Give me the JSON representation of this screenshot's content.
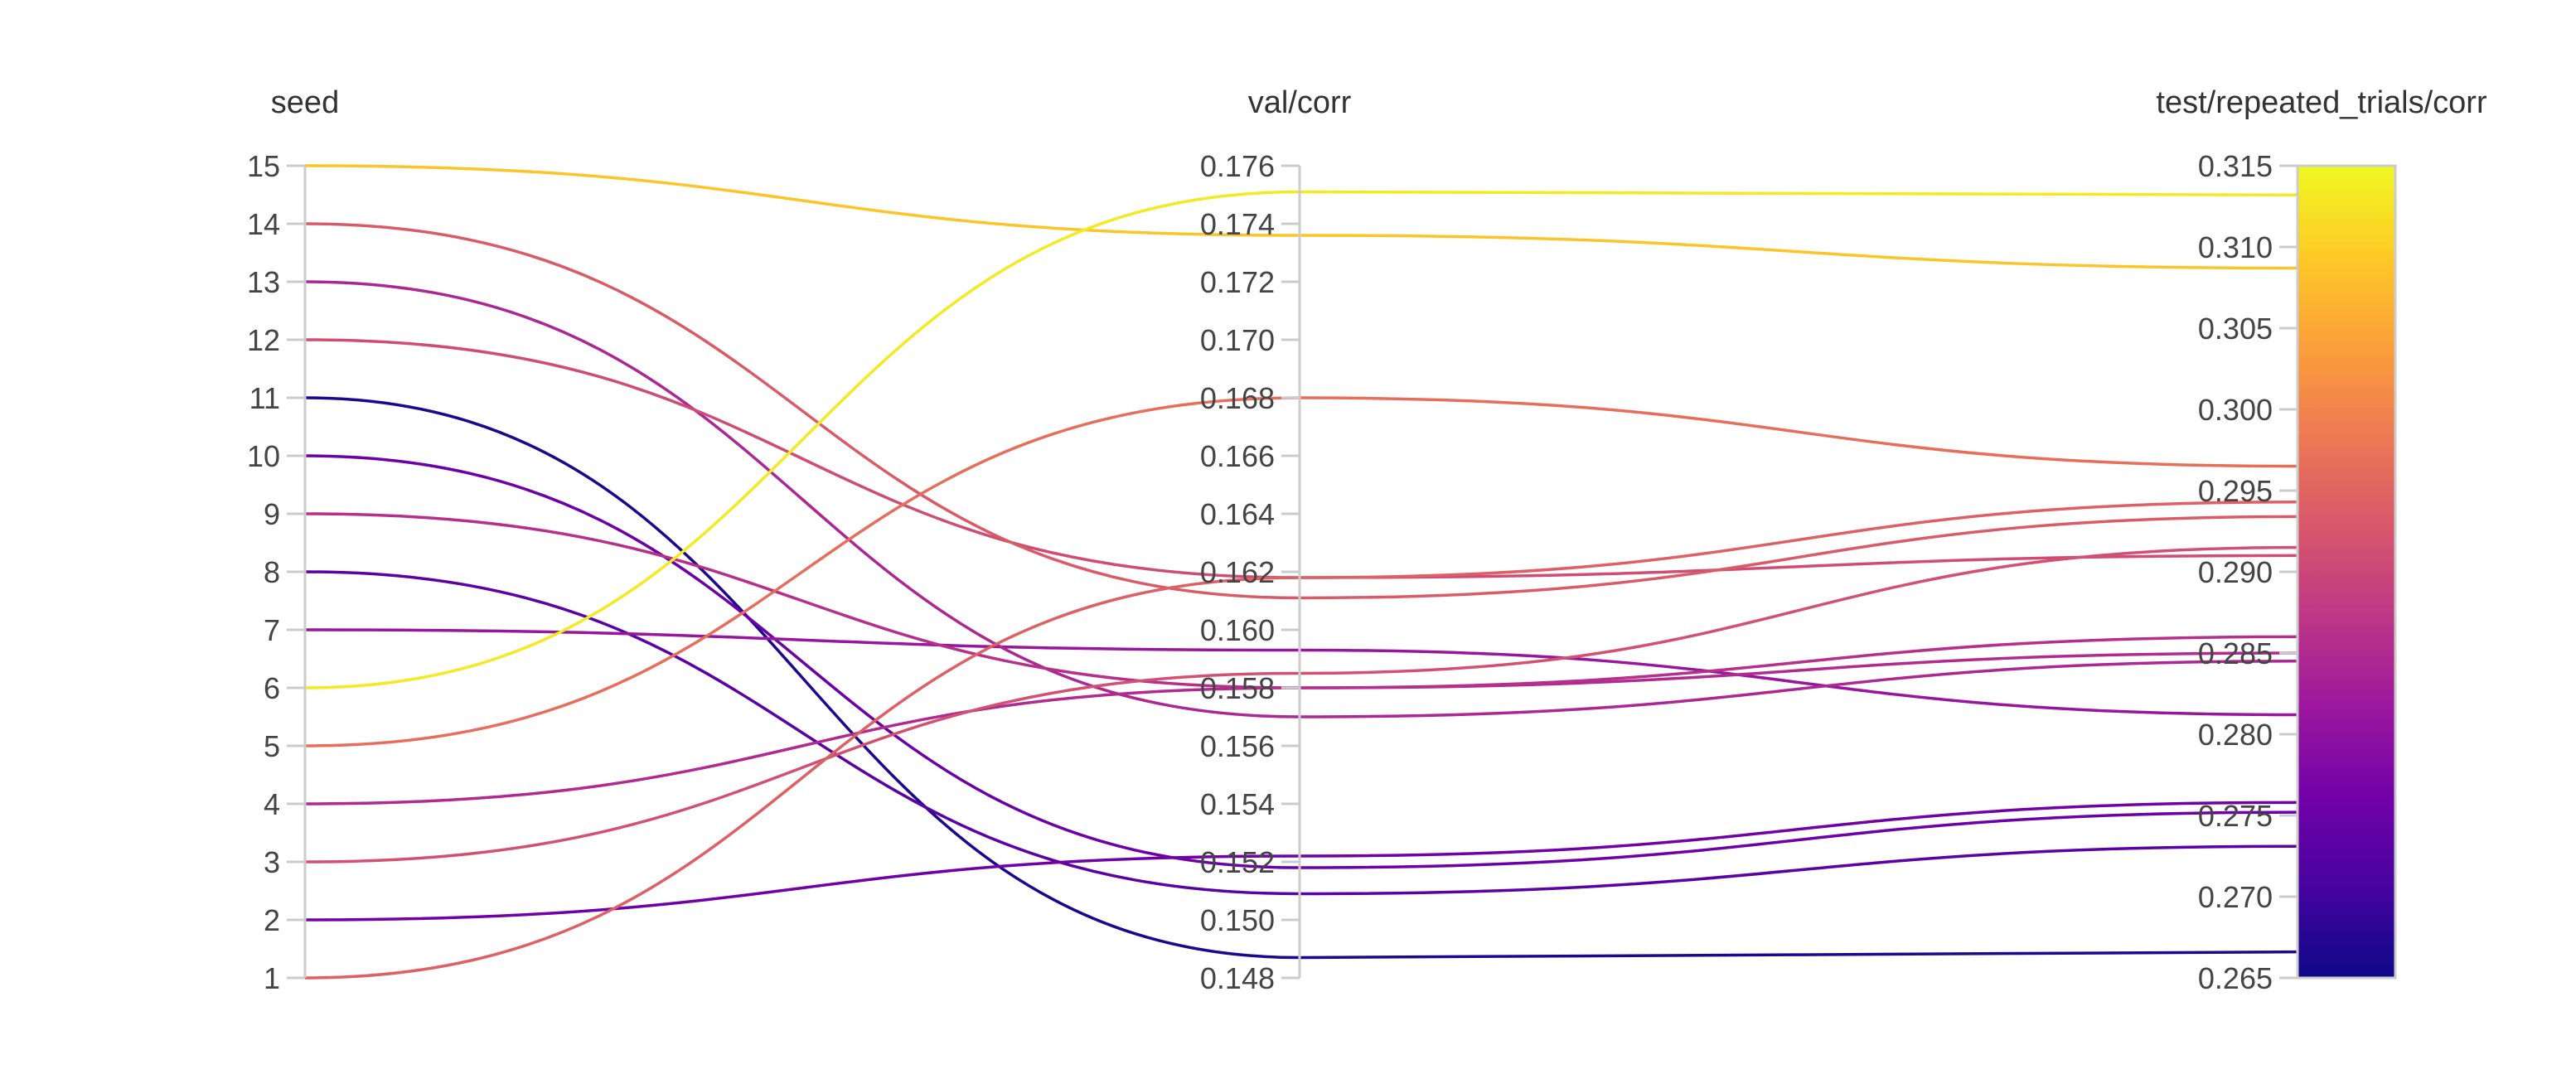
{
  "chart_data": {
    "type": "parallel_coordinates",
    "axes": [
      {
        "key": "seed",
        "label": "seed",
        "range": [
          1,
          15
        ],
        "ticks": [
          "1",
          "2",
          "3",
          "4",
          "5",
          "6",
          "7",
          "8",
          "9",
          "10",
          "11",
          "12",
          "13",
          "14",
          "15"
        ]
      },
      {
        "key": "val",
        "label": "val/corr",
        "range": [
          0.148,
          0.176
        ],
        "ticks": [
          "0.148",
          "0.150",
          "0.152",
          "0.154",
          "0.156",
          "0.158",
          "0.160",
          "0.162",
          "0.164",
          "0.166",
          "0.168",
          "0.170",
          "0.172",
          "0.174",
          "0.176"
        ]
      },
      {
        "key": "test",
        "label": "test/repeated_trials/corr",
        "range": [
          0.265,
          0.315
        ],
        "ticks": [
          "0.265",
          "0.270",
          "0.275",
          "0.280",
          "0.285",
          "0.290",
          "0.295",
          "0.300",
          "0.305",
          "0.310",
          "0.315"
        ]
      }
    ],
    "colorscale": {
      "name": "plasma",
      "axis": "test",
      "stops": [
        "#0d0887",
        "#46039f",
        "#7201a8",
        "#9c179e",
        "#bd3786",
        "#d8576b",
        "#ed7953",
        "#fb9f3a",
        "#fdca26",
        "#f0f921"
      ]
    },
    "lines": [
      {
        "seed": 15,
        "val": 0.1736,
        "test": 0.3087
      },
      {
        "seed": 6,
        "val": 0.1751,
        "test": 0.3132
      },
      {
        "seed": 5,
        "val": 0.168,
        "test": 0.2965
      },
      {
        "seed": 14,
        "val": 0.1611,
        "test": 0.2934
      },
      {
        "seed": 12,
        "val": 0.1618,
        "test": 0.291
      },
      {
        "seed": 1,
        "val": 0.1618,
        "test": 0.2943
      },
      {
        "seed": 3,
        "val": 0.1585,
        "test": 0.2915
      },
      {
        "seed": 4,
        "val": 0.158,
        "test": 0.285
      },
      {
        "seed": 9,
        "val": 0.158,
        "test": 0.286
      },
      {
        "seed": 13,
        "val": 0.157,
        "test": 0.2845
      },
      {
        "seed": 7,
        "val": 0.1593,
        "test": 0.2812
      },
      {
        "seed": 2,
        "val": 0.1522,
        "test": 0.2758
      },
      {
        "seed": 10,
        "val": 0.1518,
        "test": 0.2752
      },
      {
        "seed": 8,
        "val": 0.1509,
        "test": 0.2731
      },
      {
        "seed": 11,
        "val": 0.1487,
        "test": 0.2666
      }
    ]
  }
}
